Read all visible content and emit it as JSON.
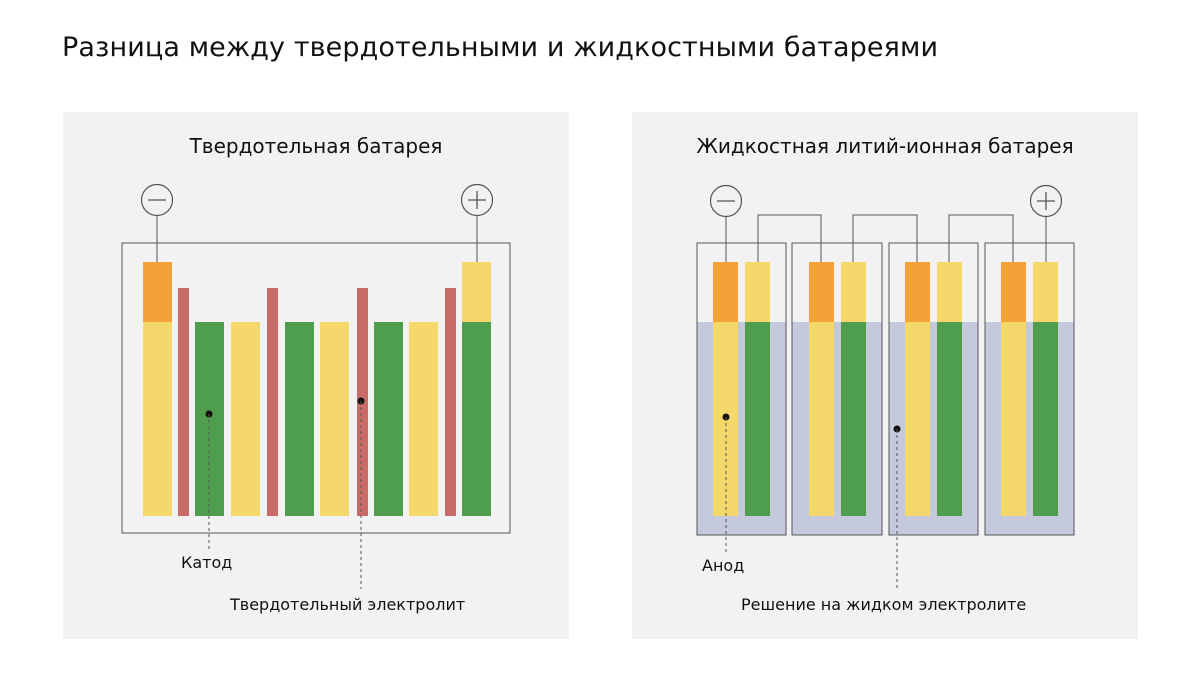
{
  "title": "Разница между твердотельными и жидкостными батареями",
  "panels": {
    "solid": {
      "title": "Твердотельная батарея",
      "label_cathode": "Катод",
      "label_electrolyte": "Твердотельный электролит",
      "negative_terminal_icon": "minus-circle-icon",
      "positive_terminal_icon": "plus-circle-icon"
    },
    "liquid": {
      "title": "Жидкостная литий-ионная батарея",
      "label_anode": "Анод",
      "label_electrolyte": "Решение на жидком электролите",
      "negative_terminal_icon": "minus-circle-icon",
      "positive_terminal_icon": "plus-circle-icon"
    }
  },
  "colors": {
    "panel_bg": "#f2f2f2",
    "outline": "#555555",
    "cathode_green": "#4f9e4e",
    "anode_yellow": "#f4d86c",
    "tab_orange": "#f3a23b",
    "solid_electrolyte_red": "#c96b67",
    "liquid_electrolyte": "#c5c9dc"
  }
}
